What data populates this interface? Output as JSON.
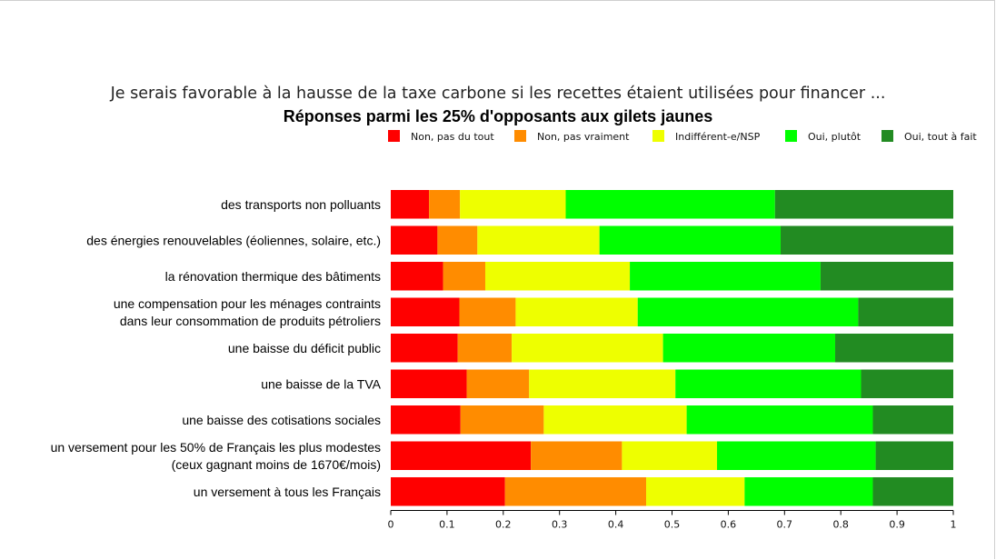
{
  "chart_data": {
    "type": "bar",
    "orientation": "horizontal",
    "stacked": true,
    "title": "Je serais favorable à la hausse de la taxe carbone si les recettes étaient utilisées pour financer ...",
    "subtitle": "Réponses parmi les 25% d'opposants aux gilets jaunes",
    "xlabel": "",
    "ylabel": "",
    "xlim": [
      0,
      1
    ],
    "xticks": [
      "0",
      "0.1",
      "0.2",
      "0.3",
      "0.4",
      "0.5",
      "0.6",
      "0.7",
      "0.8",
      "0.9",
      "1"
    ],
    "grid": false,
    "legend_position": "top-right",
    "categories": [
      [
        "des transports non polluants"
      ],
      [
        "des énergies renouvelables (éoliennes, solaire, etc.)"
      ],
      [
        "la rénovation thermique des bâtiments"
      ],
      [
        "une compensation pour les ménages contraints",
        "dans leur consommation de produits pétroliers"
      ],
      [
        "une baisse du déficit public"
      ],
      [
        "une baisse de la TVA"
      ],
      [
        "une baisse des cotisations sociales"
      ],
      [
        "un versement pour les 50% de Français les plus modestes",
        "(ceux gagnant moins de 1670€/mois)"
      ],
      [
        "un versement à tous les Français"
      ]
    ],
    "series": [
      {
        "name": "Non, pas du tout",
        "color": "#ff0000",
        "values": [
          0.068,
          0.083,
          0.093,
          0.122,
          0.119,
          0.135,
          0.124,
          0.249,
          0.203
        ]
      },
      {
        "name": "Non, pas vraiment",
        "color": "#ff8c00",
        "values": [
          0.055,
          0.071,
          0.075,
          0.1,
          0.096,
          0.111,
          0.148,
          0.162,
          0.251
        ]
      },
      {
        "name": "Indifférent-e/NSP",
        "color": "#eeff00",
        "values": [
          0.188,
          0.217,
          0.257,
          0.217,
          0.269,
          0.26,
          0.254,
          0.169,
          0.175
        ]
      },
      {
        "name": "Oui, plutôt",
        "color": "#00ff00",
        "values": [
          0.372,
          0.322,
          0.339,
          0.392,
          0.306,
          0.33,
          0.331,
          0.282,
          0.228
        ]
      },
      {
        "name": "Oui, tout à fait",
        "color": "#228b22",
        "values": [
          0.317,
          0.307,
          0.236,
          0.169,
          0.21,
          0.164,
          0.143,
          0.138,
          0.143
        ]
      }
    ]
  }
}
